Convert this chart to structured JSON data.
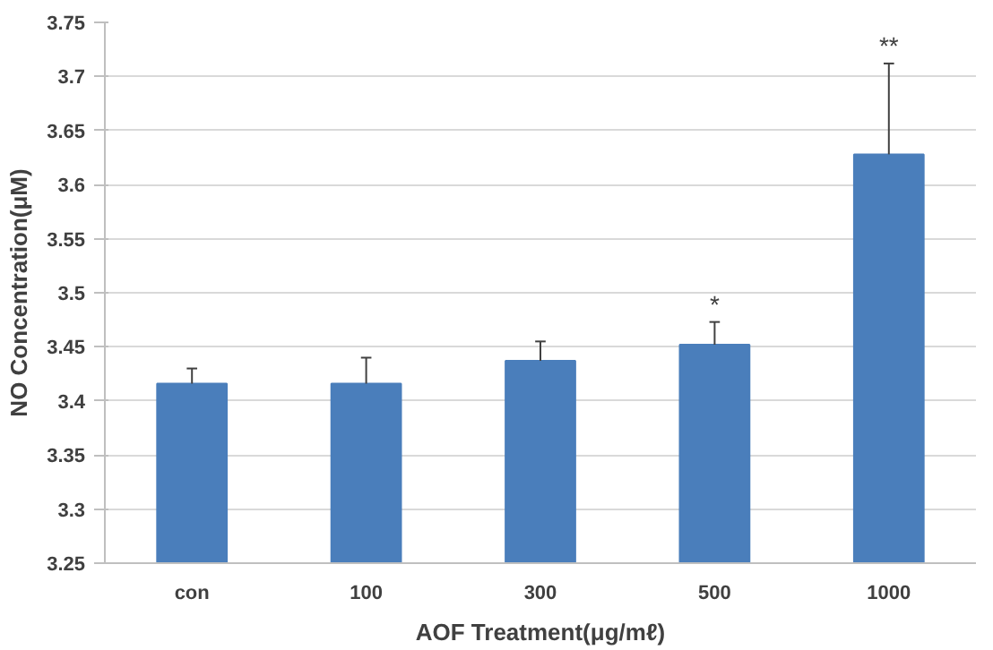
{
  "chart_data": {
    "type": "bar",
    "xlabel": "AOF Treatment(μg/mℓ)",
    "ylabel": "NO Concentration(μM)",
    "categories": [
      "con",
      "100",
      "300",
      "500",
      "1000"
    ],
    "values": [
      3.416,
      3.416,
      3.437,
      3.452,
      3.628
    ],
    "errors": [
      [
        3.416,
        3.43
      ],
      [
        3.416,
        3.44
      ],
      [
        3.437,
        3.455
      ],
      [
        3.452,
        3.473
      ],
      [
        3.628,
        3.712
      ]
    ],
    "color": "#4a7ebb",
    "ylim": [
      3.25,
      3.75
    ],
    "yticks": [
      {
        "value": 3.25,
        "label": "3.25"
      },
      {
        "value": 3.3,
        "label": "3.3"
      },
      {
        "value": 3.35,
        "label": "3.35"
      },
      {
        "value": 3.4,
        "label": "3.4"
      },
      {
        "value": 3.45,
        "label": "3.45"
      },
      {
        "value": 3.5,
        "label": "3.5"
      },
      {
        "value": 3.55,
        "label": "3.55"
      },
      {
        "value": 3.6,
        "label": "3.6"
      },
      {
        "value": 3.65,
        "label": "3.65"
      },
      {
        "value": 3.7,
        "label": "3.7"
      },
      {
        "value": 3.75,
        "label": "3.75"
      }
    ],
    "grid": "y",
    "annotations": [
      {
        "text": "*",
        "x": "500",
        "y": 3.473
      },
      {
        "text": "**",
        "x": "1000",
        "y": 3.712
      }
    ]
  }
}
